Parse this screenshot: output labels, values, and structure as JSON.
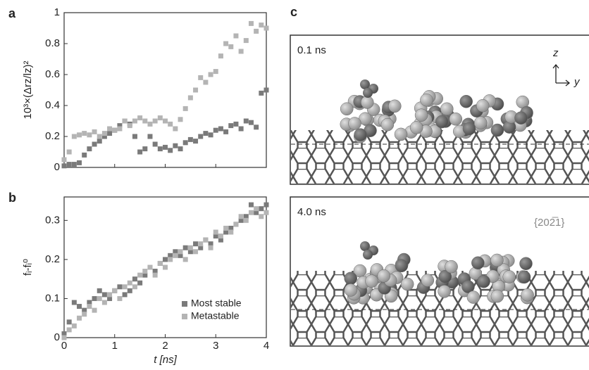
{
  "chart_data": [
    {
      "type": "scatter",
      "panel": "a",
      "ylabel": "10³×(Δrz/lz)²",
      "x": [
        0,
        0.1,
        0.2,
        0.3,
        0.4,
        0.5,
        0.6,
        0.7,
        0.8,
        0.9,
        1.0,
        1.1,
        1.2,
        1.3,
        1.4,
        1.5,
        1.6,
        1.7,
        1.8,
        1.9,
        2.0,
        2.1,
        2.2,
        2.3,
        2.4,
        2.5,
        2.6,
        2.7,
        2.8,
        2.9,
        3.0,
        3.1,
        3.2,
        3.3,
        3.4,
        3.5,
        3.6,
        3.7,
        3.8,
        3.9,
        4.0
      ],
      "series": [
        {
          "name": "Most stable",
          "color": "#7a7a7a",
          "values": [
            0.01,
            0.02,
            0.02,
            0.03,
            0.08,
            0.12,
            0.15,
            0.17,
            0.2,
            0.22,
            0.24,
            0.27,
            0.3,
            0.28,
            0.2,
            0.1,
            0.12,
            0.2,
            0.15,
            0.12,
            0.13,
            0.11,
            0.14,
            0.12,
            0.16,
            0.18,
            0.17,
            0.2,
            0.22,
            0.21,
            0.24,
            0.25,
            0.23,
            0.27,
            0.28,
            0.25,
            0.3,
            0.29,
            0.26,
            0.48,
            0.5
          ]
        },
        {
          "name": "Metastable",
          "color": "#b4b4b4",
          "values": [
            0.05,
            0.1,
            0.2,
            0.21,
            0.22,
            0.21,
            0.23,
            0.2,
            0.22,
            0.25,
            0.24,
            0.25,
            0.3,
            0.27,
            0.3,
            0.32,
            0.3,
            0.28,
            0.3,
            0.32,
            0.3,
            0.28,
            0.25,
            0.31,
            0.38,
            0.45,
            0.5,
            0.58,
            0.55,
            0.6,
            0.62,
            0.72,
            0.8,
            0.78,
            0.85,
            0.75,
            0.82,
            0.93,
            0.88,
            0.92,
            0.9
          ]
        }
      ],
      "xlim": [
        0,
        4
      ],
      "ylim": [
        0,
        1
      ],
      "yticks": [
        0,
        0.2,
        0.4,
        0.6,
        0.8,
        1
      ]
    },
    {
      "type": "scatter",
      "panel": "b",
      "ylabel": "fᵢ-fᵢ⁰",
      "xlabel": "t [ns]",
      "x": [
        0,
        0.1,
        0.2,
        0.3,
        0.4,
        0.5,
        0.6,
        0.7,
        0.8,
        0.9,
        1.0,
        1.1,
        1.2,
        1.3,
        1.4,
        1.5,
        1.6,
        1.7,
        1.8,
        1.9,
        2.0,
        2.1,
        2.2,
        2.3,
        2.4,
        2.5,
        2.6,
        2.7,
        2.8,
        2.9,
        3.0,
        3.1,
        3.2,
        3.3,
        3.4,
        3.5,
        3.6,
        3.7,
        3.8,
        3.9,
        4.0
      ],
      "series": [
        {
          "name": "Most stable",
          "color": "#7a7a7a",
          "values": [
            0.01,
            0.04,
            0.09,
            0.08,
            0.07,
            0.09,
            0.1,
            0.12,
            0.11,
            0.1,
            0.12,
            0.13,
            0.11,
            0.12,
            0.15,
            0.14,
            0.16,
            0.18,
            0.17,
            0.19,
            0.2,
            0.21,
            0.22,
            0.21,
            0.23,
            0.22,
            0.24,
            0.23,
            0.25,
            0.24,
            0.26,
            0.25,
            0.27,
            0.28,
            0.29,
            0.3,
            0.31,
            0.34,
            0.32,
            0.33,
            0.34
          ]
        },
        {
          "name": "Metastable",
          "color": "#b4b4b4",
          "values": [
            0.0,
            0.02,
            0.03,
            0.05,
            0.06,
            0.08,
            0.07,
            0.1,
            0.09,
            0.11,
            0.12,
            0.1,
            0.13,
            0.14,
            0.13,
            0.16,
            0.17,
            0.18,
            0.16,
            0.19,
            0.18,
            0.2,
            0.21,
            0.22,
            0.2,
            0.23,
            0.22,
            0.24,
            0.25,
            0.23,
            0.27,
            0.26,
            0.28,
            0.27,
            0.29,
            0.31,
            0.3,
            0.32,
            0.33,
            0.31,
            0.32
          ]
        }
      ],
      "xlim": [
        0,
        4
      ],
      "xticks": [
        0,
        1,
        2,
        3,
        4
      ],
      "ylim": [
        0,
        0.36
      ],
      "yticks": [
        0,
        0.1,
        0.2,
        0.3
      ],
      "legend": "lower right"
    }
  ],
  "figure_c": {
    "panel": "c",
    "axis_up": "z",
    "axis_right": "y",
    "frames": [
      {
        "time": "0.1 ns"
      },
      {
        "time": "4.0 ns",
        "facet": "{202̅1}"
      }
    ]
  }
}
